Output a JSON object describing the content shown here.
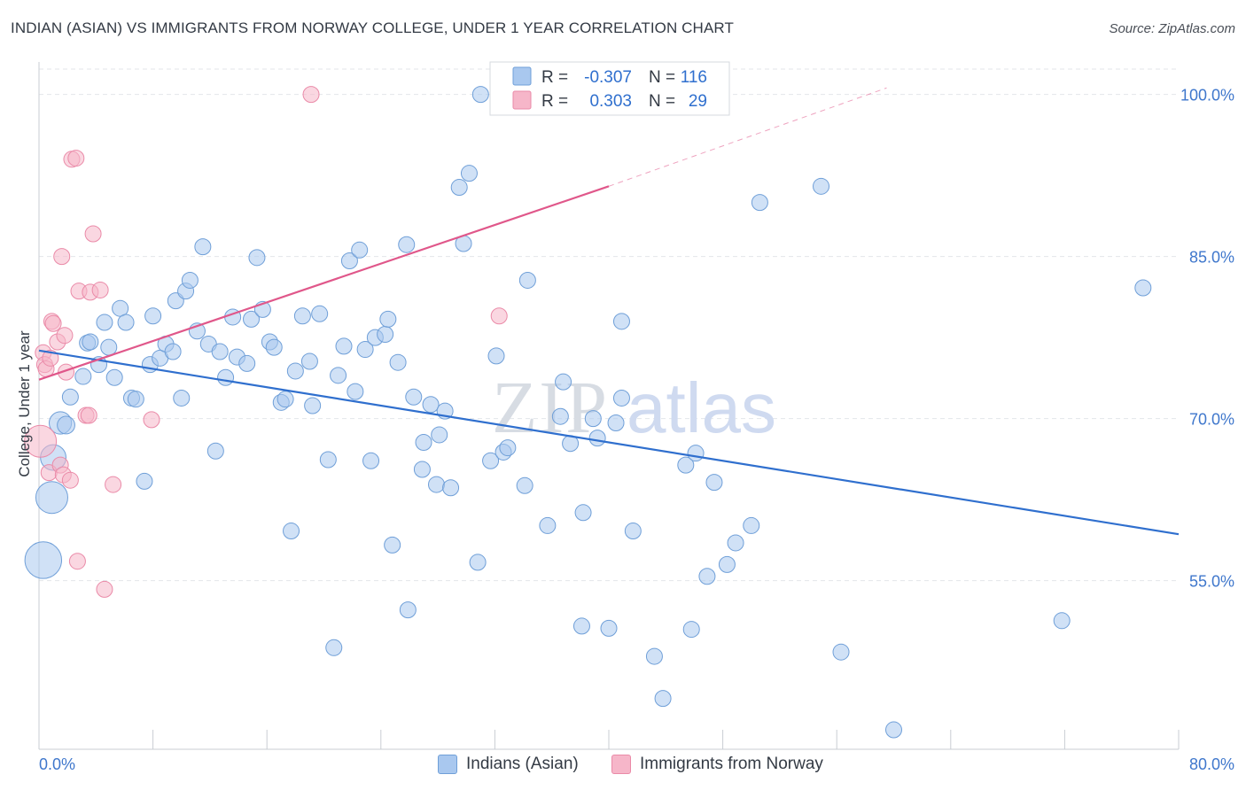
{
  "header": {
    "title": "INDIAN (ASIAN) VS IMMIGRANTS FROM NORWAY COLLEGE, UNDER 1 YEAR CORRELATION CHART",
    "source": "Source: ZipAtlas.com"
  },
  "watermark": {
    "part1": "ZIP",
    "part2": "atlas"
  },
  "chart_data": {
    "type": "scatter",
    "title": "INDIAN (ASIAN) VS IMMIGRANTS FROM NORWAY COLLEGE, UNDER 1 YEAR CORRELATION CHART",
    "xlabel": "",
    "ylabel": "College, Under 1 year",
    "xlim": [
      0,
      80
    ],
    "ylim": [
      39.4,
      103
    ],
    "x_tick_labels": [
      "0.0%",
      "80.0%"
    ],
    "y_ticks": [
      55,
      70,
      85,
      100
    ],
    "y_tick_labels": [
      "55.0%",
      "70.0%",
      "85.0%",
      "100.0%"
    ],
    "grid": true,
    "legend_position": "top-center",
    "stats": [
      {
        "r_label": "R =",
        "r_value": "-0.307",
        "n_label": "N =",
        "n_value": "116"
      },
      {
        "r_label": "R =",
        "r_value": "0.303",
        "n_label": "N =",
        "n_value": "29"
      }
    ],
    "series": [
      {
        "name": "Indians (Asian)",
        "color": "#a9c8ef",
        "edge_color": "#6f9fd8",
        "line_color": "#2f6fce",
        "trend": {
          "x0": 0,
          "y0": 76.3,
          "x1": 80,
          "y1": 59.3
        },
        "points": [
          [
            0.3,
            56.9,
            2.3
          ],
          [
            0.9,
            62.7,
            2.0
          ],
          [
            1.0,
            66.4,
            1.6
          ],
          [
            1.5,
            69.6,
            1.4
          ],
          [
            1.9,
            69.4,
            1.1
          ],
          [
            2.2,
            72.0,
            1.0
          ],
          [
            3.1,
            73.9,
            1.0
          ],
          [
            3.4,
            77.0,
            1.0
          ],
          [
            3.6,
            77.1,
            1.0
          ],
          [
            4.2,
            75.0,
            1.0
          ],
          [
            4.6,
            78.9,
            1.0
          ],
          [
            4.9,
            76.6,
            1.0
          ],
          [
            5.3,
            73.8,
            1.0
          ],
          [
            5.7,
            80.2,
            1.0
          ],
          [
            6.1,
            78.9,
            1.0
          ],
          [
            6.5,
            71.9,
            1.0
          ],
          [
            6.8,
            71.8,
            1.0
          ],
          [
            7.4,
            64.2,
            1.0
          ],
          [
            7.8,
            75.0,
            1.0
          ],
          [
            8.0,
            79.5,
            1.0
          ],
          [
            8.5,
            75.6,
            1.0
          ],
          [
            8.9,
            76.9,
            1.0
          ],
          [
            9.4,
            76.2,
            1.0
          ],
          [
            9.6,
            80.9,
            1.0
          ],
          [
            10.0,
            71.9,
            1.0
          ],
          [
            10.3,
            81.8,
            1.0
          ],
          [
            10.6,
            82.8,
            1.0
          ],
          [
            11.1,
            78.1,
            1.0
          ],
          [
            11.5,
            85.9,
            1.0
          ],
          [
            11.9,
            76.9,
            1.0
          ],
          [
            12.4,
            67.0,
            1.0
          ],
          [
            12.7,
            76.2,
            1.0
          ],
          [
            13.1,
            73.8,
            1.0
          ],
          [
            13.6,
            79.4,
            1.0
          ],
          [
            13.9,
            75.7,
            1.0
          ],
          [
            14.6,
            75.1,
            1.0
          ],
          [
            14.9,
            79.2,
            1.0
          ],
          [
            15.3,
            84.9,
            1.0
          ],
          [
            15.7,
            80.1,
            1.0
          ],
          [
            16.2,
            77.1,
            1.0
          ],
          [
            16.5,
            76.6,
            1.0
          ],
          [
            17.0,
            71.5,
            1.0
          ],
          [
            17.3,
            71.8,
            1.0
          ],
          [
            17.7,
            59.6,
            1.0
          ],
          [
            18.0,
            74.4,
            1.0
          ],
          [
            18.5,
            79.5,
            1.0
          ],
          [
            19.0,
            75.3,
            1.0
          ],
          [
            19.2,
            71.2,
            1.0
          ],
          [
            19.7,
            79.7,
            1.0
          ],
          [
            20.3,
            66.2,
            1.0
          ],
          [
            20.7,
            48.8,
            1.0
          ],
          [
            21.0,
            74.0,
            1.0
          ],
          [
            21.4,
            76.7,
            1.0
          ],
          [
            21.8,
            84.6,
            1.0
          ],
          [
            22.2,
            72.5,
            1.0
          ],
          [
            22.5,
            85.6,
            1.0
          ],
          [
            22.9,
            76.4,
            1.0
          ],
          [
            23.3,
            66.1,
            1.0
          ],
          [
            23.6,
            77.5,
            1.0
          ],
          [
            24.3,
            77.8,
            1.0
          ],
          [
            24.5,
            79.2,
            1.0
          ],
          [
            24.8,
            58.3,
            1.0
          ],
          [
            25.2,
            75.2,
            1.0
          ],
          [
            25.8,
            86.1,
            1.0
          ],
          [
            25.9,
            52.3,
            1.0
          ],
          [
            26.3,
            72.0,
            1.0
          ],
          [
            26.9,
            65.3,
            1.0
          ],
          [
            27.0,
            67.8,
            1.0
          ],
          [
            27.5,
            71.3,
            1.0
          ],
          [
            27.9,
            63.9,
            1.0
          ],
          [
            28.1,
            68.5,
            1.0
          ],
          [
            28.5,
            70.7,
            1.0
          ],
          [
            28.9,
            63.6,
            1.0
          ],
          [
            29.5,
            91.4,
            1.0
          ],
          [
            29.8,
            86.2,
            1.0
          ],
          [
            30.2,
            92.7,
            1.0
          ],
          [
            30.8,
            56.7,
            1.0
          ],
          [
            31.0,
            100.0,
            1.0
          ],
          [
            31.7,
            66.1,
            1.0
          ],
          [
            32.1,
            75.8,
            1.0
          ],
          [
            32.6,
            66.9,
            1.0
          ],
          [
            32.9,
            67.3,
            1.0
          ],
          [
            34.1,
            63.8,
            1.0
          ],
          [
            34.3,
            82.8,
            1.0
          ],
          [
            35.7,
            60.1,
            1.0
          ],
          [
            36.6,
            70.2,
            1.0
          ],
          [
            36.8,
            73.4,
            1.0
          ],
          [
            37.3,
            67.7,
            1.0
          ],
          [
            38.1,
            50.8,
            1.0
          ],
          [
            38.2,
            61.3,
            1.0
          ],
          [
            38.9,
            70.0,
            1.0
          ],
          [
            39.2,
            68.2,
            1.0
          ],
          [
            40.0,
            50.6,
            1.0
          ],
          [
            40.5,
            69.6,
            1.0
          ],
          [
            40.9,
            71.9,
            1.0
          ],
          [
            40.9,
            79.0,
            1.0
          ],
          [
            41.7,
            59.6,
            1.0
          ],
          [
            43.2,
            48.0,
            1.0
          ],
          [
            43.8,
            44.1,
            1.0
          ],
          [
            45.4,
            65.7,
            1.0
          ],
          [
            45.8,
            50.5,
            1.0
          ],
          [
            46.1,
            66.8,
            1.0
          ],
          [
            46.9,
            55.4,
            1.0
          ],
          [
            47.4,
            64.1,
            1.0
          ],
          [
            48.3,
            56.5,
            1.0
          ],
          [
            48.9,
            58.5,
            1.0
          ],
          [
            50.0,
            60.1,
            1.0
          ],
          [
            50.6,
            90.0,
            1.0
          ],
          [
            54.9,
            91.5,
            1.0
          ],
          [
            56.3,
            48.4,
            1.0
          ],
          [
            60.0,
            41.2,
            1.0
          ],
          [
            71.8,
            51.3,
            1.0
          ],
          [
            77.5,
            82.1,
            1.0
          ]
        ]
      },
      {
        "name": "Immigrants from Norway",
        "color": "#f6b6c9",
        "edge_color": "#ea8aa8",
        "line_color": "#e0578a",
        "trend": {
          "x0": 0,
          "y0": 73.6,
          "x1": 40,
          "y1": 91.5
        },
        "trend_dashed": {
          "x0": 40,
          "y0": 91.5,
          "x1": 59.5,
          "y1": 100.6
        },
        "points": [
          [
            0.1,
            67.9,
            2.0
          ],
          [
            0.3,
            76.1,
            1.0
          ],
          [
            0.4,
            75.0,
            1.0
          ],
          [
            0.5,
            74.6,
            1.0
          ],
          [
            0.7,
            65.0,
            1.0
          ],
          [
            0.8,
            75.6,
            1.0
          ],
          [
            0.9,
            79.0,
            1.0
          ],
          [
            1.0,
            78.8,
            1.0
          ],
          [
            1.3,
            77.1,
            1.0
          ],
          [
            1.5,
            65.7,
            1.0
          ],
          [
            1.6,
            85.0,
            1.0
          ],
          [
            1.7,
            64.8,
            1.0
          ],
          [
            1.8,
            77.7,
            1.0
          ],
          [
            1.9,
            74.3,
            1.0
          ],
          [
            2.2,
            64.3,
            1.0
          ],
          [
            2.3,
            94.0,
            1.0
          ],
          [
            2.6,
            94.1,
            1.0
          ],
          [
            2.7,
            56.8,
            1.0
          ],
          [
            2.8,
            81.8,
            1.0
          ],
          [
            3.3,
            70.3,
            1.0
          ],
          [
            3.5,
            70.3,
            1.0
          ],
          [
            3.6,
            81.7,
            1.0
          ],
          [
            3.8,
            87.1,
            1.0
          ],
          [
            4.3,
            81.9,
            1.0
          ],
          [
            4.6,
            54.2,
            1.0
          ],
          [
            5.2,
            63.9,
            1.0
          ],
          [
            7.9,
            69.9,
            1.0
          ],
          [
            19.1,
            100.0,
            1.0
          ],
          [
            32.3,
            79.5,
            1.0
          ]
        ]
      }
    ]
  }
}
